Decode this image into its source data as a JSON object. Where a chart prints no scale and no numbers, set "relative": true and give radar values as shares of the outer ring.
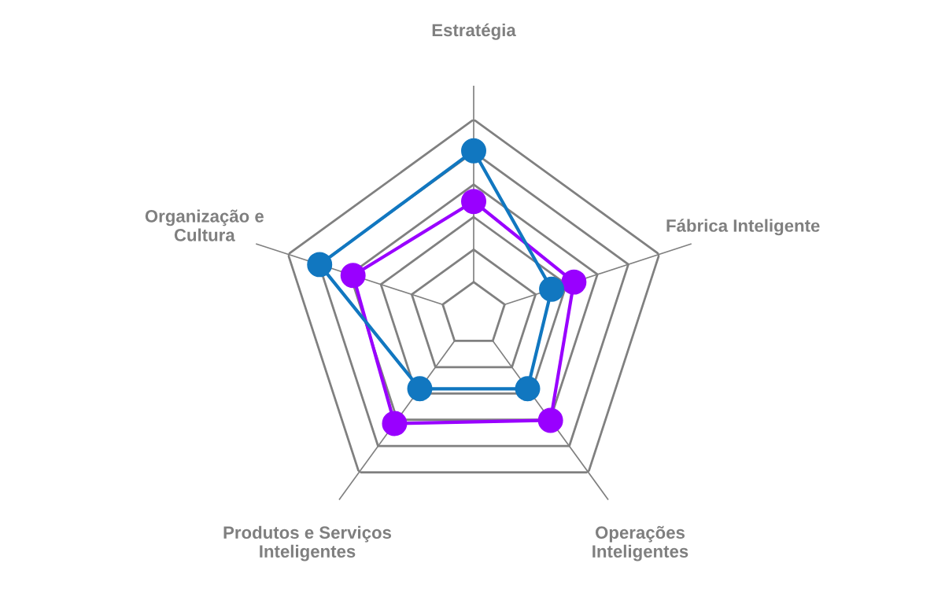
{
  "chart_data": {
    "type": "radar",
    "relative": true,
    "grid": true,
    "marker": "circle",
    "line_style": "solid",
    "categories": [
      "Estratégia",
      "Fábrica Inteligente",
      "Operações\nInteligentes",
      "Produtos e Serviços\nInteligentes",
      "Organização e\nCultura"
    ],
    "series": [
      {
        "color": "#9900ff",
        "values": [
          0.58,
          0.54,
          0.67,
          0.69,
          0.65
        ]
      },
      {
        "color": "#1177c0",
        "values": [
          0.84,
          0.42,
          0.47,
          0.47,
          0.83
        ]
      }
    ]
  }
}
